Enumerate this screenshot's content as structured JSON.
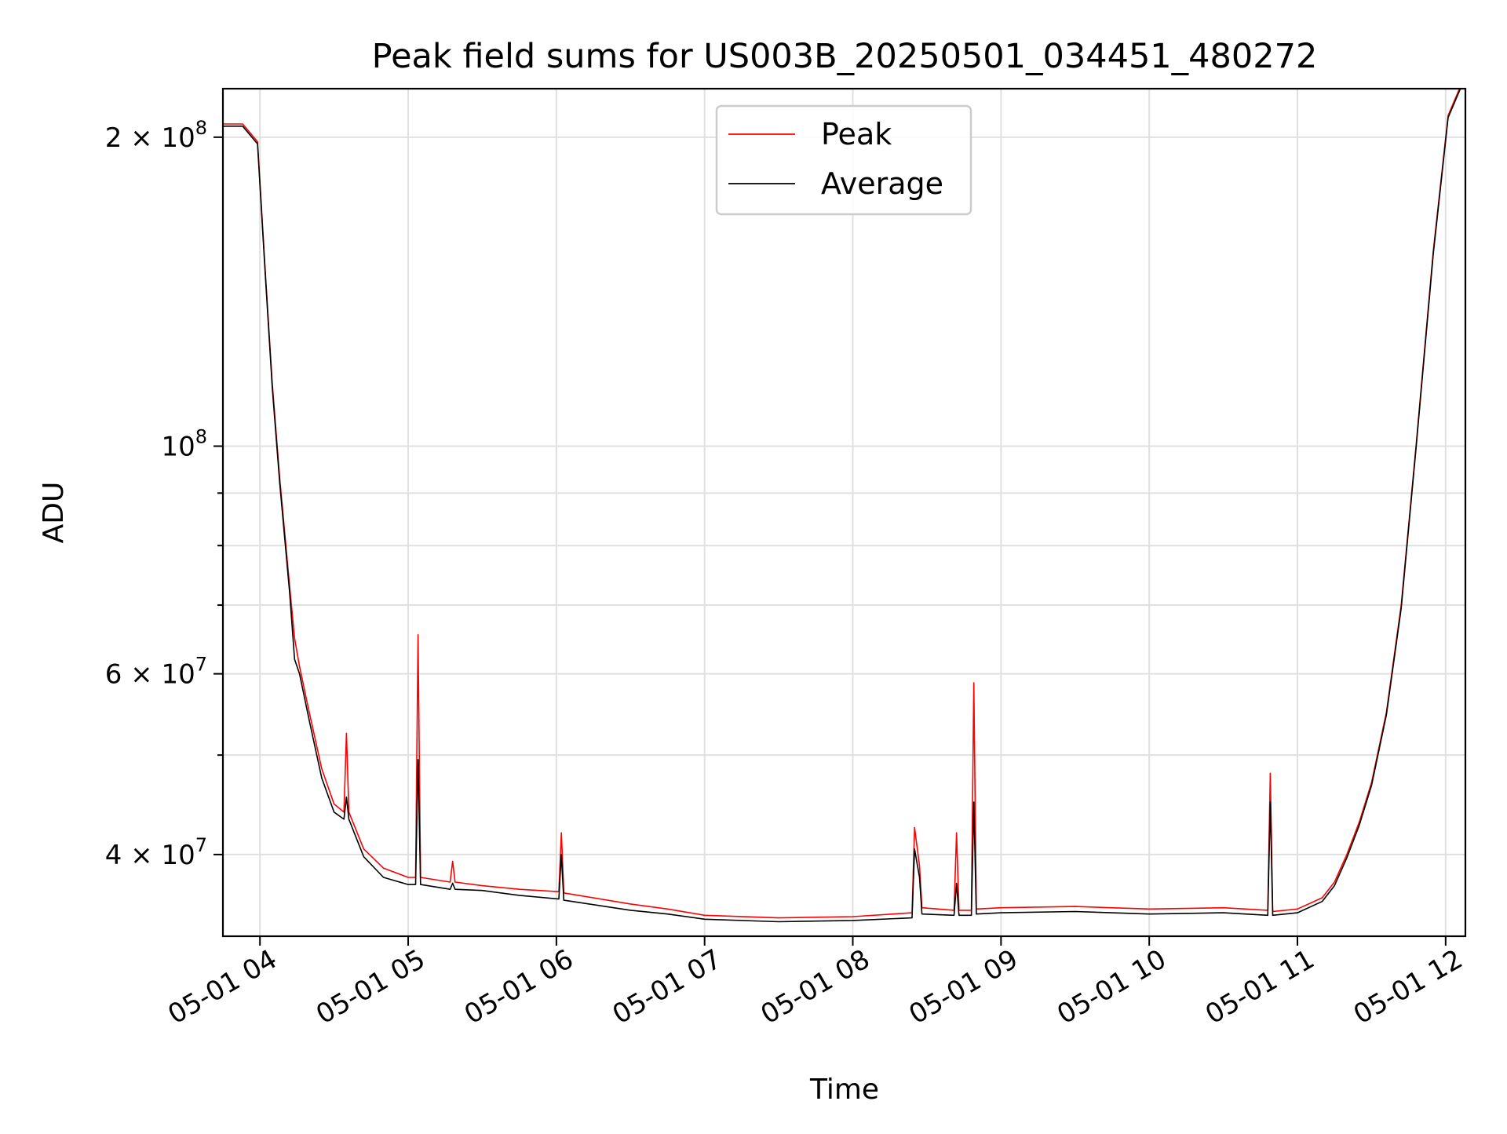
{
  "chart_data": {
    "type": "line",
    "title": "Peak field sums for US003B_20250501_034451_480272",
    "xlabel": "Time",
    "ylabel": "ADU",
    "yscale": "log",
    "grid": true,
    "legend_placement": "top-center",
    "xlim": [
      "2025-05-01 03:45",
      "2025-05-01 12:08"
    ],
    "ylim": [
      33300000,
      223000000
    ],
    "x_ticks": [
      {
        "value": "2025-05-01 04:00",
        "label": "05-01 04"
      },
      {
        "value": "2025-05-01 05:00",
        "label": "05-01 05"
      },
      {
        "value": "2025-05-01 06:00",
        "label": "05-01 06"
      },
      {
        "value": "2025-05-01 07:00",
        "label": "05-01 07"
      },
      {
        "value": "2025-05-01 08:00",
        "label": "05-01 08"
      },
      {
        "value": "2025-05-01 09:00",
        "label": "05-01 09"
      },
      {
        "value": "2025-05-01 10:00",
        "label": "05-01 10"
      },
      {
        "value": "2025-05-01 11:00",
        "label": "05-01 11"
      },
      {
        "value": "2025-05-01 12:00",
        "label": "05-01 12"
      }
    ],
    "y_major_ticks": [
      {
        "value": 40000000,
        "mant": "4",
        "exp": "7"
      },
      {
        "value": 60000000,
        "mant": "6",
        "exp": "7"
      },
      {
        "value": 100000000,
        "mant": "",
        "exp": "8"
      },
      {
        "value": 200000000,
        "mant": "2",
        "exp": "8"
      }
    ],
    "y_minor_ticks": [
      50000000,
      70000000,
      80000000,
      90000000
    ],
    "series": [
      {
        "name": "Peak",
        "color": "#ff0000",
        "points": [
          [
            "2025-05-01 03:45",
            206000000
          ],
          [
            "2025-05-01 03:53",
            206000000
          ],
          [
            "2025-05-01 03:59",
            198000000
          ],
          [
            "2025-05-01 04:02",
            150000000
          ],
          [
            "2025-05-01 04:05",
            115000000
          ],
          [
            "2025-05-01 04:08",
            93000000
          ],
          [
            "2025-05-01 04:12",
            73000000
          ],
          [
            "2025-05-01 04:14",
            65000000
          ],
          [
            "2025-05-01 04:16",
            61000000
          ],
          [
            "2025-05-01 04:20",
            55000000
          ],
          [
            "2025-05-01 04:25",
            48500000
          ],
          [
            "2025-05-01 04:30",
            44800000
          ],
          [
            "2025-05-01 04:34",
            44000000
          ],
          [
            "2025-05-01 04:35",
            52500000
          ],
          [
            "2025-05-01 04:36",
            44000000
          ],
          [
            "2025-05-01 04:42",
            40500000
          ],
          [
            "2025-05-01 04:50",
            38800000
          ],
          [
            "2025-05-01 05:00",
            38000000
          ],
          [
            "2025-05-01 05:03",
            38000000
          ],
          [
            "2025-05-01 05:04",
            65500000
          ],
          [
            "2025-05-01 05:05",
            38000000
          ],
          [
            "2025-05-01 05:17",
            37600000
          ],
          [
            "2025-05-01 05:18",
            39400000
          ],
          [
            "2025-05-01 05:19",
            37600000
          ],
          [
            "2025-05-01 05:30",
            37300000
          ],
          [
            "2025-05-01 05:45",
            37000000
          ],
          [
            "2025-05-01 06:01",
            36800000
          ],
          [
            "2025-05-01 06:02",
            42000000
          ],
          [
            "2025-05-01 06:03",
            36700000
          ],
          [
            "2025-05-01 06:30",
            35800000
          ],
          [
            "2025-05-01 06:45",
            35400000
          ],
          [
            "2025-05-01 07:00",
            34900000
          ],
          [
            "2025-05-01 07:30",
            34700000
          ],
          [
            "2025-05-01 08:00",
            34800000
          ],
          [
            "2025-05-01 08:24",
            35100000
          ],
          [
            "2025-05-01 08:25",
            42500000
          ],
          [
            "2025-05-01 08:27",
            39000000
          ],
          [
            "2025-05-01 08:28",
            35500000
          ],
          [
            "2025-05-01 08:41",
            35300000
          ],
          [
            "2025-05-01 08:42",
            42000000
          ],
          [
            "2025-05-01 08:43",
            35300000
          ],
          [
            "2025-05-01 08:48",
            35300000
          ],
          [
            "2025-05-01 08:49",
            58800000
          ],
          [
            "2025-05-01 08:50",
            35400000
          ],
          [
            "2025-05-01 09:00",
            35500000
          ],
          [
            "2025-05-01 09:30",
            35600000
          ],
          [
            "2025-05-01 10:00",
            35400000
          ],
          [
            "2025-05-01 10:30",
            35500000
          ],
          [
            "2025-05-01 10:48",
            35300000
          ],
          [
            "2025-05-01 10:49",
            48000000
          ],
          [
            "2025-05-01 10:50",
            35200000
          ],
          [
            "2025-05-01 11:00",
            35400000
          ],
          [
            "2025-05-01 11:10",
            36300000
          ],
          [
            "2025-05-01 11:15",
            37600000
          ],
          [
            "2025-05-01 11:20",
            40000000
          ],
          [
            "2025-05-01 11:25",
            43000000
          ],
          [
            "2025-05-01 11:30",
            47000000
          ],
          [
            "2025-05-01 11:36",
            55000000
          ],
          [
            "2025-05-01 11:42",
            70000000
          ],
          [
            "2025-05-01 11:48",
            100000000
          ],
          [
            "2025-05-01 11:55",
            155000000
          ],
          [
            "2025-05-01 12:01",
            210000000
          ],
          [
            "2025-05-01 12:08",
            230000000
          ]
        ]
      },
      {
        "name": "Average",
        "color": "#000000",
        "points": [
          [
            "2025-05-01 03:45",
            205000000
          ],
          [
            "2025-05-01 03:53",
            205000000
          ],
          [
            "2025-05-01 03:59",
            197000000
          ],
          [
            "2025-05-01 04:02",
            149000000
          ],
          [
            "2025-05-01 04:05",
            114000000
          ],
          [
            "2025-05-01 04:08",
            92000000
          ],
          [
            "2025-05-01 04:12",
            72000000
          ],
          [
            "2025-05-01 04:14",
            62000000
          ],
          [
            "2025-05-01 04:16",
            60000000
          ],
          [
            "2025-05-01 04:20",
            54000000
          ],
          [
            "2025-05-01 04:25",
            47500000
          ],
          [
            "2025-05-01 04:30",
            44000000
          ],
          [
            "2025-05-01 04:34",
            43300000
          ],
          [
            "2025-05-01 04:35",
            45500000
          ],
          [
            "2025-05-01 04:36",
            43300000
          ],
          [
            "2025-05-01 04:42",
            39800000
          ],
          [
            "2025-05-01 04:50",
            38000000
          ],
          [
            "2025-05-01 05:00",
            37400000
          ],
          [
            "2025-05-01 05:03",
            37400000
          ],
          [
            "2025-05-01 05:04",
            49500000
          ],
          [
            "2025-05-01 05:05",
            37400000
          ],
          [
            "2025-05-01 05:17",
            37000000
          ],
          [
            "2025-05-01 05:18",
            37500000
          ],
          [
            "2025-05-01 05:19",
            37000000
          ],
          [
            "2025-05-01 05:30",
            36900000
          ],
          [
            "2025-05-01 05:45",
            36500000
          ],
          [
            "2025-05-01 06:01",
            36200000
          ],
          [
            "2025-05-01 06:02",
            40000000
          ],
          [
            "2025-05-01 06:03",
            36100000
          ],
          [
            "2025-05-01 06:30",
            35300000
          ],
          [
            "2025-05-01 06:45",
            35000000
          ],
          [
            "2025-05-01 07:00",
            34600000
          ],
          [
            "2025-05-01 07:30",
            34400000
          ],
          [
            "2025-05-01 08:00",
            34500000
          ],
          [
            "2025-05-01 08:24",
            34700000
          ],
          [
            "2025-05-01 08:25",
            40500000
          ],
          [
            "2025-05-01 08:27",
            38000000
          ],
          [
            "2025-05-01 08:28",
            35000000
          ],
          [
            "2025-05-01 08:41",
            34900000
          ],
          [
            "2025-05-01 08:42",
            37500000
          ],
          [
            "2025-05-01 08:43",
            34900000
          ],
          [
            "2025-05-01 08:48",
            34900000
          ],
          [
            "2025-05-01 08:49",
            45000000
          ],
          [
            "2025-05-01 08:50",
            35000000
          ],
          [
            "2025-05-01 09:00",
            35100000
          ],
          [
            "2025-05-01 09:30",
            35200000
          ],
          [
            "2025-05-01 10:00",
            35000000
          ],
          [
            "2025-05-01 10:30",
            35100000
          ],
          [
            "2025-05-01 10:48",
            34900000
          ],
          [
            "2025-05-01 10:49",
            45000000
          ],
          [
            "2025-05-01 10:50",
            34900000
          ],
          [
            "2025-05-01 11:00",
            35100000
          ],
          [
            "2025-05-01 11:10",
            36000000
          ],
          [
            "2025-05-01 11:15",
            37300000
          ],
          [
            "2025-05-01 11:20",
            39700000
          ],
          [
            "2025-05-01 11:25",
            42700000
          ],
          [
            "2025-05-01 11:30",
            46700000
          ],
          [
            "2025-05-01 11:36",
            54700000
          ],
          [
            "2025-05-01 11:42",
            69500000
          ],
          [
            "2025-05-01 11:48",
            99500000
          ],
          [
            "2025-05-01 11:55",
            154000000
          ],
          [
            "2025-05-01 12:01",
            209000000
          ],
          [
            "2025-05-01 12:08",
            229000000
          ]
        ]
      }
    ]
  }
}
